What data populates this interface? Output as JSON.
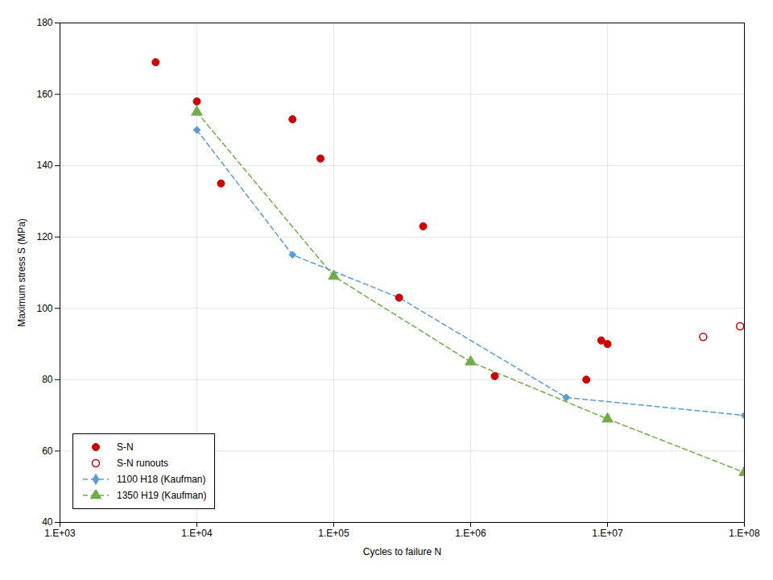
{
  "chart_data": {
    "type": "line",
    "xlabel": "Cycles to failure N",
    "ylabel": "Maximum stress S (MPa)",
    "log": "x",
    "xlim": [
      1000,
      100000000
    ],
    "ylim": [
      40,
      180
    ],
    "xticks": [
      {
        "value": 1000,
        "label": "1.E+03"
      },
      {
        "value": 10000,
        "label": "1.E+04"
      },
      {
        "value": 100000,
        "label": "1.E+05"
      },
      {
        "value": 1000000,
        "label": "1.E+06"
      },
      {
        "value": 10000000,
        "label": "1.E+07"
      },
      {
        "value": 100000000,
        "label": "1.E+08"
      }
    ],
    "yticks": [
      40,
      60,
      80,
      100,
      120,
      140,
      160,
      180
    ],
    "grid": true,
    "legend": "lower left",
    "series": [
      {
        "name": "S-N",
        "type": "scatter",
        "color": "#cc0000",
        "marker": "circle",
        "x": [
          5000,
          10000,
          15000,
          50000,
          80000,
          300000,
          450000,
          1500000,
          7000000,
          9000000,
          10000000
        ],
        "values": [
          169,
          158,
          135,
          153,
          142,
          103,
          123,
          81,
          80,
          91,
          90
        ]
      },
      {
        "name": "S-N runouts",
        "type": "scatter",
        "color": "#cc0000",
        "marker": "open circle",
        "x": [
          93000000,
          50000000
        ],
        "values": [
          95,
          92
        ]
      },
      {
        "name": "1100 H18 (Kaufman)",
        "type": "line",
        "color": "#5b9bd5",
        "line_style": "dashed",
        "marker": "diamond",
        "x": [
          10000,
          50000,
          300000,
          5000000,
          100000000
        ],
        "values": [
          150,
          115,
          103,
          75,
          70
        ]
      },
      {
        "name": "1350 H19 (Kaufman)",
        "type": "line",
        "color": "#70ad47",
        "line_style": "dashed",
        "marker": "triangle",
        "x": [
          10000,
          100000,
          1000000,
          10000000,
          100000000
        ],
        "values": [
          155,
          109,
          85,
          69,
          54
        ]
      }
    ]
  }
}
